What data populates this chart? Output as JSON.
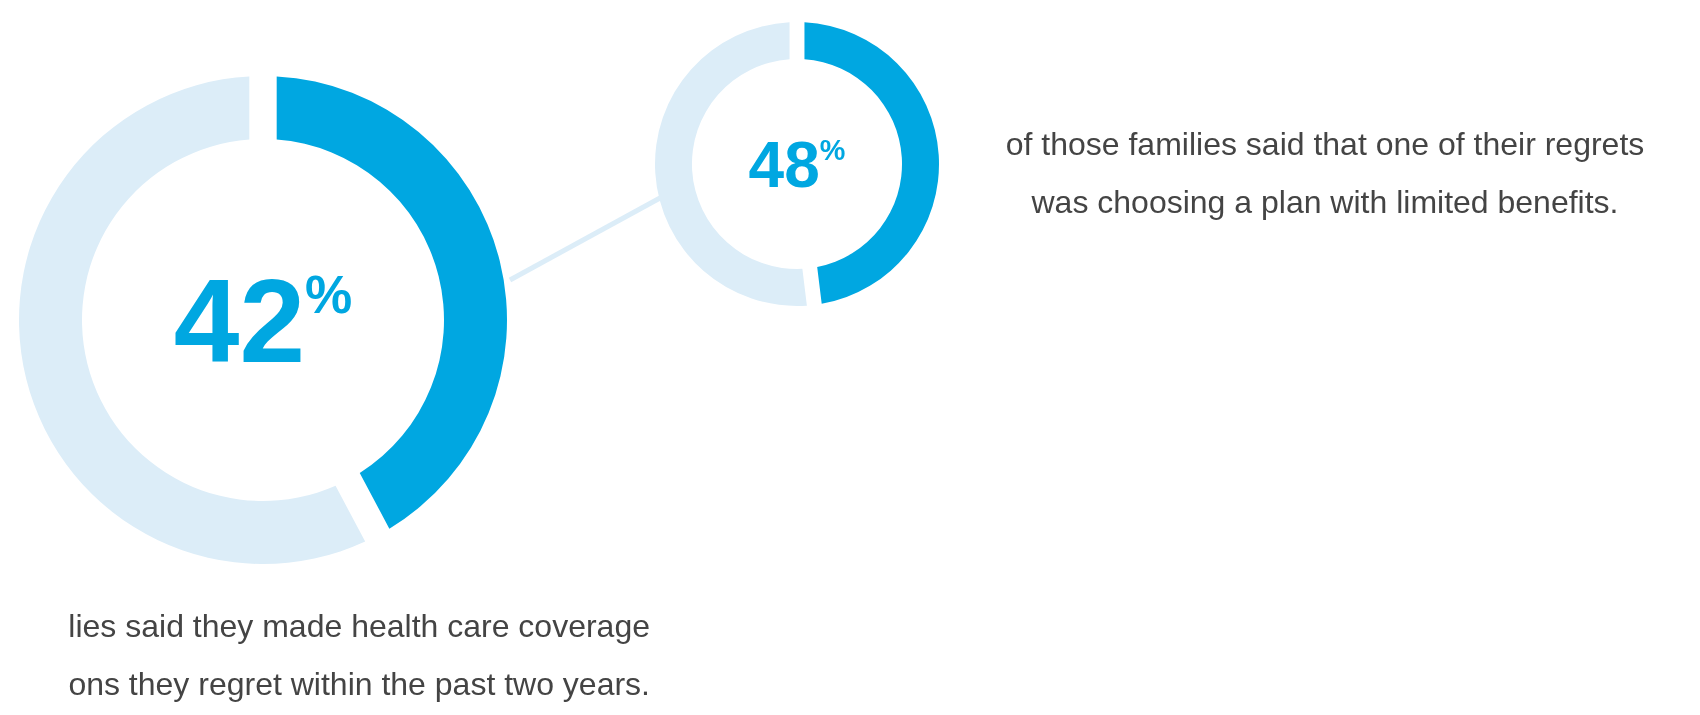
{
  "chart_data": [
    {
      "type": "donut",
      "categories": [
        null,
        null
      ],
      "values": [
        42,
        58
      ],
      "colors": [
        "#00a7e1",
        "#dcedf8"
      ],
      "annotations": [
        "42$^{%}$",
        "lies said they made health care coverage",
        "ons they regret within the past two years."
      ]
    },
    {
      "type": "donut",
      "categories": [
        null,
        null
      ],
      "values": [
        48,
        52
      ],
      "colors": [
        "#00a7e1",
        "#dcedf8"
      ],
      "annotations": [
        "48$^{%}$",
        "of those families said that one of their regrets",
        "was choosing a plan with limited benefits."
      ]
    }
  ]
}
